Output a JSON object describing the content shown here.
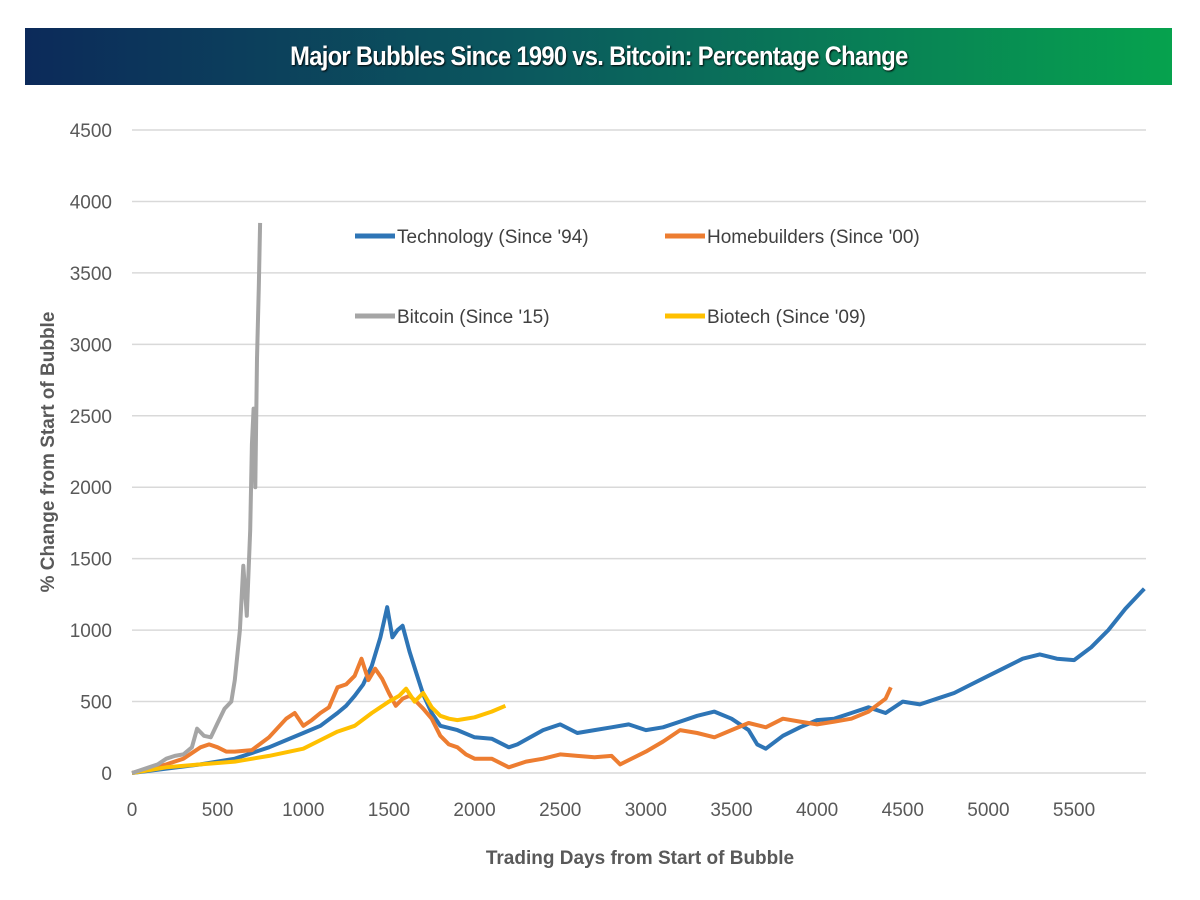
{
  "chart_data": {
    "type": "line",
    "title": "Major Bubbles Since 1990 vs. Bitcoin: Percentage Change",
    "xlabel": "Trading Days from Start of Bubble",
    "ylabel": "% Change from Start of Bubble",
    "xlim": [
      0,
      5920
    ],
    "ylim": [
      0,
      4500
    ],
    "xticks": [
      "0",
      "500",
      "1000",
      "1500",
      "2000",
      "2500",
      "3000",
      "3500",
      "4000",
      "4500",
      "5000",
      "5500"
    ],
    "yticks": [
      "0",
      "500",
      "1000",
      "1500",
      "2000",
      "2500",
      "3000",
      "3500",
      "4000",
      "4500"
    ],
    "grid": "horizontal",
    "legend_position": "top-center",
    "series": [
      {
        "name": "Technology (Since '94)",
        "color": "#2e75b6",
        "points": [
          [
            0,
            0
          ],
          [
            200,
            30
          ],
          [
            400,
            60
          ],
          [
            600,
            100
          ],
          [
            800,
            180
          ],
          [
            900,
            230
          ],
          [
            1000,
            280
          ],
          [
            1100,
            330
          ],
          [
            1200,
            420
          ],
          [
            1250,
            470
          ],
          [
            1300,
            540
          ],
          [
            1350,
            620
          ],
          [
            1400,
            750
          ],
          [
            1450,
            950
          ],
          [
            1490,
            1160
          ],
          [
            1520,
            950
          ],
          [
            1550,
            1000
          ],
          [
            1580,
            1030
          ],
          [
            1620,
            850
          ],
          [
            1660,
            700
          ],
          [
            1700,
            550
          ],
          [
            1750,
            420
          ],
          [
            1800,
            330
          ],
          [
            1900,
            300
          ],
          [
            2000,
            250
          ],
          [
            2100,
            240
          ],
          [
            2200,
            180
          ],
          [
            2250,
            200
          ],
          [
            2400,
            300
          ],
          [
            2500,
            340
          ],
          [
            2600,
            280
          ],
          [
            2700,
            300
          ],
          [
            2800,
            320
          ],
          [
            2900,
            340
          ],
          [
            3000,
            300
          ],
          [
            3100,
            320
          ],
          [
            3200,
            360
          ],
          [
            3300,
            400
          ],
          [
            3400,
            430
          ],
          [
            3500,
            380
          ],
          [
            3600,
            300
          ],
          [
            3650,
            200
          ],
          [
            3700,
            170
          ],
          [
            3800,
            260
          ],
          [
            3900,
            320
          ],
          [
            4000,
            370
          ],
          [
            4100,
            380
          ],
          [
            4200,
            420
          ],
          [
            4300,
            460
          ],
          [
            4400,
            420
          ],
          [
            4500,
            500
          ],
          [
            4600,
            480
          ],
          [
            4700,
            520
          ],
          [
            4800,
            560
          ],
          [
            4900,
            620
          ],
          [
            5000,
            680
          ],
          [
            5100,
            740
          ],
          [
            5200,
            800
          ],
          [
            5300,
            830
          ],
          [
            5400,
            800
          ],
          [
            5500,
            790
          ],
          [
            5600,
            880
          ],
          [
            5700,
            1000
          ],
          [
            5800,
            1150
          ],
          [
            5910,
            1290
          ]
        ]
      },
      {
        "name": "Homebuilders (Since '00)",
        "color": "#ed7d31",
        "points": [
          [
            0,
            0
          ],
          [
            200,
            60
          ],
          [
            300,
            100
          ],
          [
            400,
            180
          ],
          [
            450,
            200
          ],
          [
            500,
            180
          ],
          [
            550,
            150
          ],
          [
            600,
            150
          ],
          [
            700,
            160
          ],
          [
            800,
            250
          ],
          [
            900,
            380
          ],
          [
            950,
            420
          ],
          [
            1000,
            330
          ],
          [
            1050,
            370
          ],
          [
            1100,
            420
          ],
          [
            1150,
            460
          ],
          [
            1200,
            600
          ],
          [
            1250,
            620
          ],
          [
            1300,
            680
          ],
          [
            1340,
            800
          ],
          [
            1380,
            650
          ],
          [
            1420,
            730
          ],
          [
            1460,
            660
          ],
          [
            1500,
            560
          ],
          [
            1540,
            470
          ],
          [
            1580,
            520
          ],
          [
            1620,
            540
          ],
          [
            1660,
            500
          ],
          [
            1700,
            450
          ],
          [
            1750,
            380
          ],
          [
            1800,
            260
          ],
          [
            1850,
            200
          ],
          [
            1900,
            180
          ],
          [
            1950,
            130
          ],
          [
            2000,
            100
          ],
          [
            2100,
            100
          ],
          [
            2200,
            40
          ],
          [
            2300,
            80
          ],
          [
            2400,
            100
          ],
          [
            2500,
            130
          ],
          [
            2600,
            120
          ],
          [
            2700,
            110
          ],
          [
            2800,
            120
          ],
          [
            2850,
            60
          ],
          [
            2900,
            90
          ],
          [
            3000,
            150
          ],
          [
            3100,
            220
          ],
          [
            3200,
            300
          ],
          [
            3300,
            280
          ],
          [
            3400,
            250
          ],
          [
            3500,
            300
          ],
          [
            3600,
            350
          ],
          [
            3700,
            320
          ],
          [
            3800,
            380
          ],
          [
            3900,
            360
          ],
          [
            4000,
            340
          ],
          [
            4100,
            360
          ],
          [
            4200,
            380
          ],
          [
            4300,
            430
          ],
          [
            4400,
            520
          ],
          [
            4430,
            600
          ]
        ]
      },
      {
        "name": "Bitcoin (Since '15)",
        "color": "#a5a5a5",
        "points": [
          [
            0,
            0
          ],
          [
            50,
            20
          ],
          [
            100,
            40
          ],
          [
            150,
            60
          ],
          [
            200,
            100
          ],
          [
            250,
            120
          ],
          [
            300,
            130
          ],
          [
            350,
            180
          ],
          [
            380,
            310
          ],
          [
            420,
            260
          ],
          [
            460,
            250
          ],
          [
            500,
            350
          ],
          [
            540,
            450
          ],
          [
            580,
            500
          ],
          [
            600,
            650
          ],
          [
            630,
            1000
          ],
          [
            650,
            1450
          ],
          [
            670,
            1100
          ],
          [
            690,
            1700
          ],
          [
            700,
            2300
          ],
          [
            710,
            2550
          ],
          [
            720,
            2000
          ],
          [
            730,
            2900
          ],
          [
            740,
            3400
          ],
          [
            748,
            3850
          ]
        ]
      },
      {
        "name": "Biotech (Since '09)",
        "color": "#ffc000",
        "points": [
          [
            0,
            0
          ],
          [
            200,
            40
          ],
          [
            400,
            60
          ],
          [
            600,
            80
          ],
          [
            800,
            120
          ],
          [
            1000,
            170
          ],
          [
            1100,
            230
          ],
          [
            1200,
            290
          ],
          [
            1300,
            330
          ],
          [
            1400,
            420
          ],
          [
            1500,
            500
          ],
          [
            1560,
            540
          ],
          [
            1600,
            590
          ],
          [
            1650,
            500
          ],
          [
            1700,
            560
          ],
          [
            1750,
            460
          ],
          [
            1800,
            400
          ],
          [
            1850,
            380
          ],
          [
            1900,
            370
          ],
          [
            2000,
            390
          ],
          [
            2100,
            430
          ],
          [
            2180,
            470
          ]
        ]
      }
    ]
  }
}
